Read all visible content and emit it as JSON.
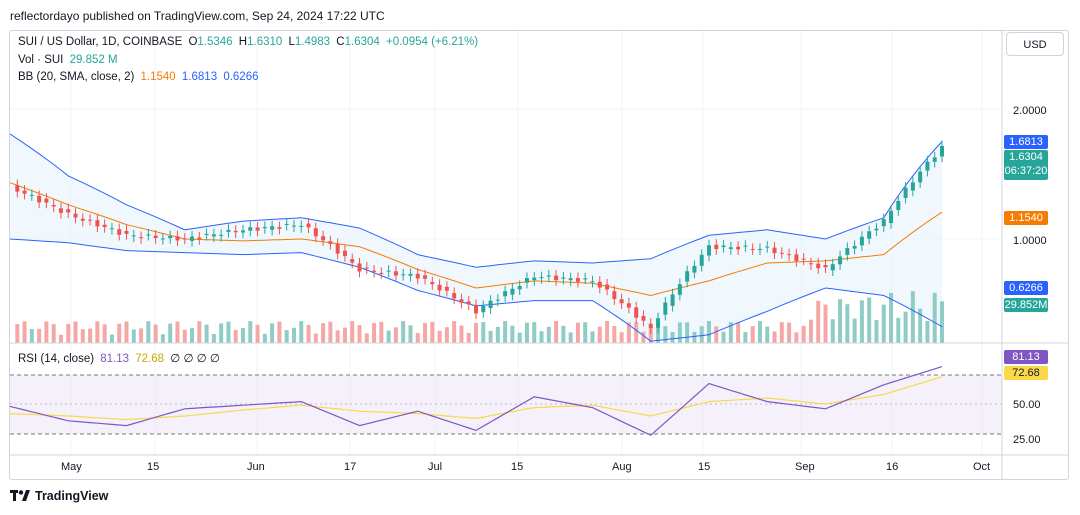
{
  "header": {
    "text": "reflectordayo published on TradingView.com, Sep 24, 2024 17:22 UTC"
  },
  "legend": {
    "symbol": "SUI / US Dollar, 1D, COINBASE",
    "o_label": "O",
    "o": "1.5346",
    "h_label": "H",
    "h": "1.6310",
    "l_label": "L",
    "l": "1.4983",
    "c_label": "C",
    "c": "1.6304",
    "change": "+0.0954 (+6.21%)",
    "vol_label": "Vol · SUI",
    "vol": "29.852 M",
    "bb_label": "BB (20, SMA, close, 2)",
    "bb_mid": "1.1540",
    "bb_upper": "1.6813",
    "bb_lower": "0.6266"
  },
  "rsi_legend": {
    "label": "RSI (14, close)",
    "rsi": "81.13",
    "ma": "72.68",
    "extra": "∅ ∅ ∅ ∅"
  },
  "currency_button": "USD",
  "price_scale": {
    "ticks": [
      "2.0000",
      "1.0000"
    ],
    "upper_tag": "1.6813",
    "last_price": "1.6304",
    "countdown": "06:37:20",
    "mid_tag": "1.1540",
    "lower_tag": "0.6266",
    "vol_tag": "29.852M"
  },
  "rsi_scale": {
    "ticks": [
      "50.00",
      "25.00"
    ],
    "rsi_tag": "81.13",
    "ma_tag": "72.68"
  },
  "time_axis": [
    "May",
    "15",
    "Jun",
    "17",
    "Jul",
    "15",
    "Aug",
    "15",
    "Sep",
    "16",
    "Oct"
  ],
  "footer": {
    "brand": "TradingView"
  },
  "colors": {
    "up": "#26a69a",
    "down": "#ef5350",
    "bb_band": "#2962ff",
    "bb_mid": "#f57c00",
    "rsi": "#7e57c2",
    "rsi_ma": "#f9d949",
    "vol_up": "#8fccc5",
    "vol_down": "#f5a7a5"
  },
  "chart_data": [
    {
      "type": "candlestick",
      "title": "SUI / US Dollar, 1D, COINBASE",
      "y_scale": "log",
      "x": [
        "Apr 20",
        "Apr 29",
        "May 9",
        "May 19",
        "May 29",
        "Jun 8",
        "Jun 18",
        "Jun 28",
        "Jul 8",
        "Jul 18",
        "Jul 28",
        "Aug 6",
        "Aug 16",
        "Aug 26",
        "Sep 5",
        "Sep 15",
        "Sep 24"
      ],
      "close": [
        1.32,
        1.14,
        1.02,
        1.0,
        1.05,
        1.08,
        0.85,
        0.82,
        0.68,
        0.82,
        0.8,
        0.62,
        0.96,
        0.95,
        0.85,
        1.1,
        1.6304
      ],
      "bb_upper": [
        1.75,
        1.4,
        1.2,
        1.05,
        1.1,
        1.12,
        1.06,
        0.92,
        0.86,
        0.89,
        0.88,
        0.9,
        1.02,
        1.05,
        1.0,
        1.12,
        1.6813
      ],
      "bb_mid": [
        1.35,
        1.2,
        1.08,
        1.0,
        0.99,
        1.0,
        0.96,
        0.85,
        0.77,
        0.8,
        0.79,
        0.74,
        0.8,
        0.88,
        0.89,
        0.92,
        1.154
      ],
      "bb_lower": [
        1.0,
        0.98,
        0.94,
        0.93,
        0.92,
        0.93,
        0.86,
        0.76,
        0.7,
        0.72,
        0.72,
        0.58,
        0.6,
        0.68,
        0.77,
        0.74,
        0.6266
      ],
      "volume_last": 29.852,
      "ylim": [
        0.55,
        2.2
      ]
    },
    {
      "type": "line",
      "title": "RSI (14, close)",
      "x": [
        "Apr 20",
        "Apr 29",
        "May 9",
        "May 19",
        "May 29",
        "Jun 8",
        "Jun 18",
        "Jun 28",
        "Jul 8",
        "Jul 18",
        "Jul 28",
        "Aug 6",
        "Aug 16",
        "Aug 26",
        "Sep 5",
        "Sep 15",
        "Sep 24"
      ],
      "series": [
        {
          "values": [
            48,
            36,
            32,
            46,
            49,
            52,
            32,
            44,
            28,
            56,
            47,
            24,
            67,
            52,
            46,
            66,
            81.13
          ]
        },
        {
          "values": [
            42,
            40,
            37,
            40,
            45,
            49,
            44,
            42,
            38,
            47,
            49,
            40,
            52,
            55,
            50,
            58,
            72.68
          ]
        }
      ],
      "levels": [
        70,
        50,
        30
      ],
      "ylim": [
        20,
        88
      ]
    }
  ]
}
